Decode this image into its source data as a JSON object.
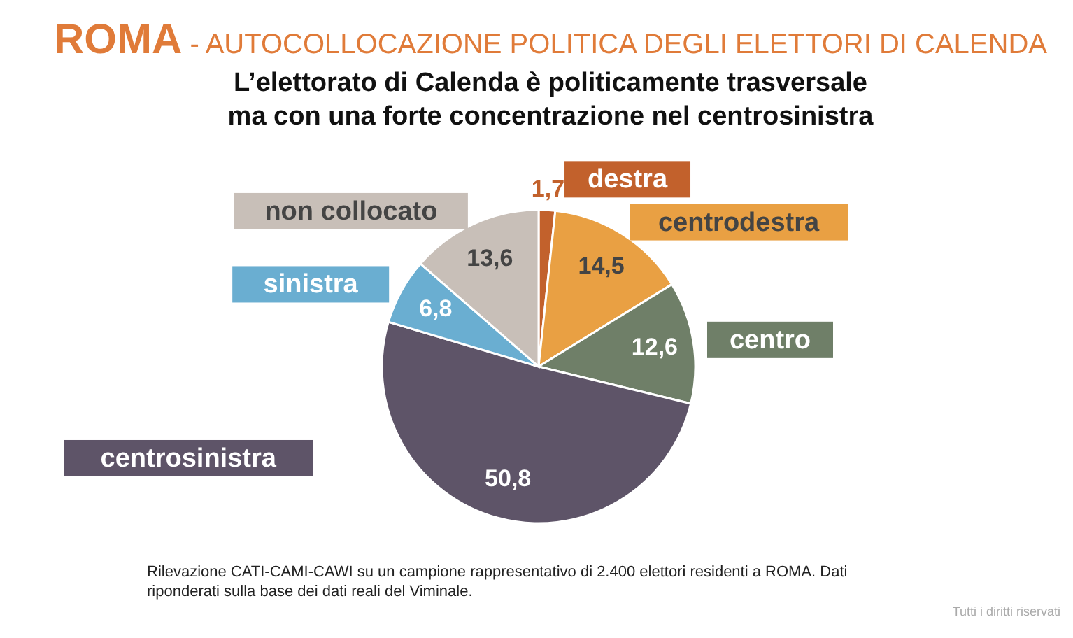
{
  "chart_data": {
    "type": "pie",
    "title": "ROMA - AUTOCOLLOCAZIONE POLITICA DEGLI ELETTORI DI CALENDA",
    "subtitle": "L’elettorato di Calenda è politicamente trasversale\nma con una forte concentrazione nel centrosinistra",
    "categories": [
      "destra",
      "centrodestra",
      "centro",
      "centrosinistra",
      "sinistra",
      "non collocato"
    ],
    "values": [
      1.7,
      14.5,
      12.6,
      50.8,
      6.8,
      13.6
    ],
    "colors": [
      "#c2612c",
      "#e9a043",
      "#6f7f68",
      "#5e5468",
      "#6aaed1",
      "#c8bfb8"
    ],
    "value_labels": [
      "1,7",
      "14,5",
      "12,6",
      "50,8",
      "6,8",
      "13,6"
    ],
    "annotations": [
      "Rilevazione CATI-CAMI-CAWI su un campione rappresentativo di 2.400 elettori residenti a ROMA. Dati riponderati sulla base dei dati reali del Viminale.",
      "Tutti i diritti riservati"
    ]
  }
}
